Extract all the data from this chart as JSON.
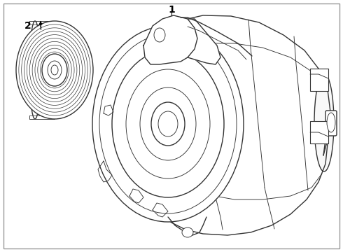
{
  "bg_color": "#ffffff",
  "border_color": "#999999",
  "line_color": "#333333",
  "label1": "1",
  "label2": "2",
  "fig_width": 4.9,
  "fig_height": 3.6,
  "dpi": 100
}
